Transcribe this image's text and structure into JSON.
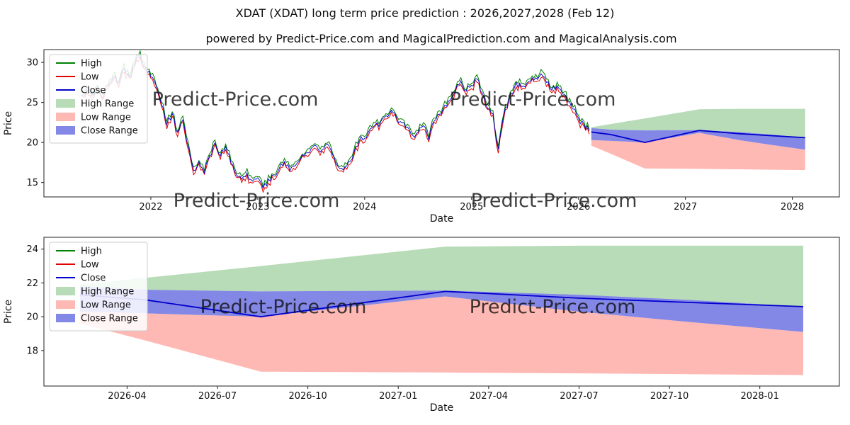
{
  "header": {
    "title": "XDAT (XDAT) long term price prediction : 2026,2027,2028 (Feb 12)",
    "subtitle": "powered by Predict-Price.com and MagicalPrediction.com and MagicalAnalysis.com"
  },
  "watermark": "Predict-Price.com",
  "colors": {
    "high": "#008000",
    "low": "#e00000",
    "close": "#0000cc",
    "high_range": "#b7dcb7",
    "low_range": "#ffb9b4",
    "close_range": "#8387e6",
    "axis": "#222222",
    "watermark": "#cecece"
  },
  "legend": [
    {
      "label": "High",
      "swatch": "line",
      "color": "high"
    },
    {
      "label": "Low",
      "swatch": "line",
      "color": "low"
    },
    {
      "label": "Close",
      "swatch": "line",
      "color": "close"
    },
    {
      "label": "High Range",
      "swatch": "patch",
      "color": "high_range"
    },
    {
      "label": "Low Range",
      "swatch": "patch",
      "color": "low_range"
    },
    {
      "label": "Close Range",
      "swatch": "patch",
      "color": "close_range"
    }
  ],
  "chart_data": [
    {
      "type": "line",
      "title": "",
      "xlabel": "Date",
      "ylabel": "Price",
      "xlim": [
        2021.0,
        2028.44
      ],
      "ylim": [
        13.2,
        31.6
      ],
      "yticks": [
        {
          "v": 15,
          "label": "15"
        },
        {
          "v": 20,
          "label": "20"
        },
        {
          "v": 25,
          "label": "25"
        },
        {
          "v": 30,
          "label": "30"
        }
      ],
      "xticks": [
        {
          "v": 2022,
          "label": "2022"
        },
        {
          "v": 2023,
          "label": "2023"
        },
        {
          "v": 2024,
          "label": "2024"
        },
        {
          "v": 2025,
          "label": "2025"
        },
        {
          "v": 2026,
          "label": "2026"
        },
        {
          "v": 2027,
          "label": "2027"
        },
        {
          "v": 2028,
          "label": "2028"
        }
      ],
      "history": {
        "x_start": 2021.35,
        "x_step": 0.05,
        "close": [
          25.9,
          26.6,
          25.7,
          26.9,
          25.6,
          27.1,
          28.2,
          27.4,
          29.2,
          28.2,
          29.8,
          31.0,
          29.4,
          28.3,
          27.0,
          24.8,
          22.3,
          23.6,
          21.2,
          22.9,
          19.6,
          16.4,
          17.6,
          16.1,
          18.4,
          19.9,
          18.3,
          19.6,
          17.4,
          16.0,
          15.4,
          16.1,
          15.1,
          15.6,
          14.2,
          15.4,
          15.9,
          16.7,
          17.6,
          16.4,
          17.1,
          17.9,
          18.6,
          19.2,
          19.6,
          19.0,
          19.9,
          18.4,
          17.0,
          16.6,
          17.6,
          18.7,
          20.2,
          20.6,
          21.6,
          22.1,
          22.6,
          23.4,
          24.0,
          23.1,
          22.4,
          22.0,
          20.8,
          21.2,
          22.1,
          20.4,
          22.6,
          23.6,
          24.6,
          25.4,
          26.6,
          27.8,
          26.4,
          27.1,
          27.9,
          26.1,
          24.2,
          23.6,
          19.2,
          23.2,
          25.6,
          26.9,
          27.4,
          26.9,
          27.6,
          28.1,
          28.6,
          27.4,
          26.6,
          27.2,
          26.1,
          25.1,
          24.1,
          23.1,
          22.2,
          21.5
        ]
      },
      "prediction": {
        "x": [
          2026.12,
          2026.3,
          2026.62,
          2027.13,
          2027.5,
          2027.8,
          2028.12
        ],
        "close": [
          21.3,
          21.0,
          20.0,
          21.5,
          21.1,
          20.85,
          20.6
        ],
        "close_upper": [
          21.8,
          21.6,
          21.5,
          21.55,
          21.3,
          21.0,
          20.6
        ],
        "close_lower": [
          20.3,
          20.2,
          20.0,
          21.2,
          20.3,
          19.7,
          19.1
        ],
        "high_upper": [
          21.9,
          22.3,
          23.0,
          24.15,
          24.2,
          24.2,
          24.2
        ],
        "low_lower": [
          19.6,
          18.6,
          16.75,
          16.7,
          16.65,
          16.6,
          16.55
        ]
      }
    },
    {
      "type": "line",
      "title": "",
      "xlabel": "Date",
      "ylabel": "Price",
      "xlim": [
        2026.02,
        2028.22
      ],
      "ylim": [
        15.9,
        24.7
      ],
      "yticks": [
        {
          "v": 18,
          "label": "18"
        },
        {
          "v": 20,
          "label": "20"
        },
        {
          "v": 22,
          "label": "22"
        },
        {
          "v": 24,
          "label": "24"
        }
      ],
      "xticks": [
        {
          "v": 2026.25,
          "label": "2026-04"
        },
        {
          "v": 2026.5,
          "label": "2026-07"
        },
        {
          "v": 2026.75,
          "label": "2026-10"
        },
        {
          "v": 2027.0,
          "label": "2027-01"
        },
        {
          "v": 2027.25,
          "label": "2027-04"
        },
        {
          "v": 2027.5,
          "label": "2027-07"
        },
        {
          "v": 2027.75,
          "label": "2027-10"
        },
        {
          "v": 2028.0,
          "label": "2028-01"
        }
      ],
      "prediction": {
        "x": [
          2026.12,
          2026.3,
          2026.62,
          2027.13,
          2027.5,
          2027.8,
          2028.12
        ],
        "close": [
          21.3,
          21.0,
          20.0,
          21.5,
          21.1,
          20.85,
          20.6
        ],
        "close_upper": [
          21.8,
          21.6,
          21.5,
          21.55,
          21.3,
          21.0,
          20.6
        ],
        "close_lower": [
          20.3,
          20.2,
          20.0,
          21.2,
          20.3,
          19.7,
          19.1
        ],
        "high_upper": [
          21.9,
          22.3,
          23.0,
          24.15,
          24.2,
          24.2,
          24.2
        ],
        "low_lower": [
          19.6,
          18.6,
          16.75,
          16.7,
          16.65,
          16.6,
          16.55
        ]
      }
    }
  ]
}
